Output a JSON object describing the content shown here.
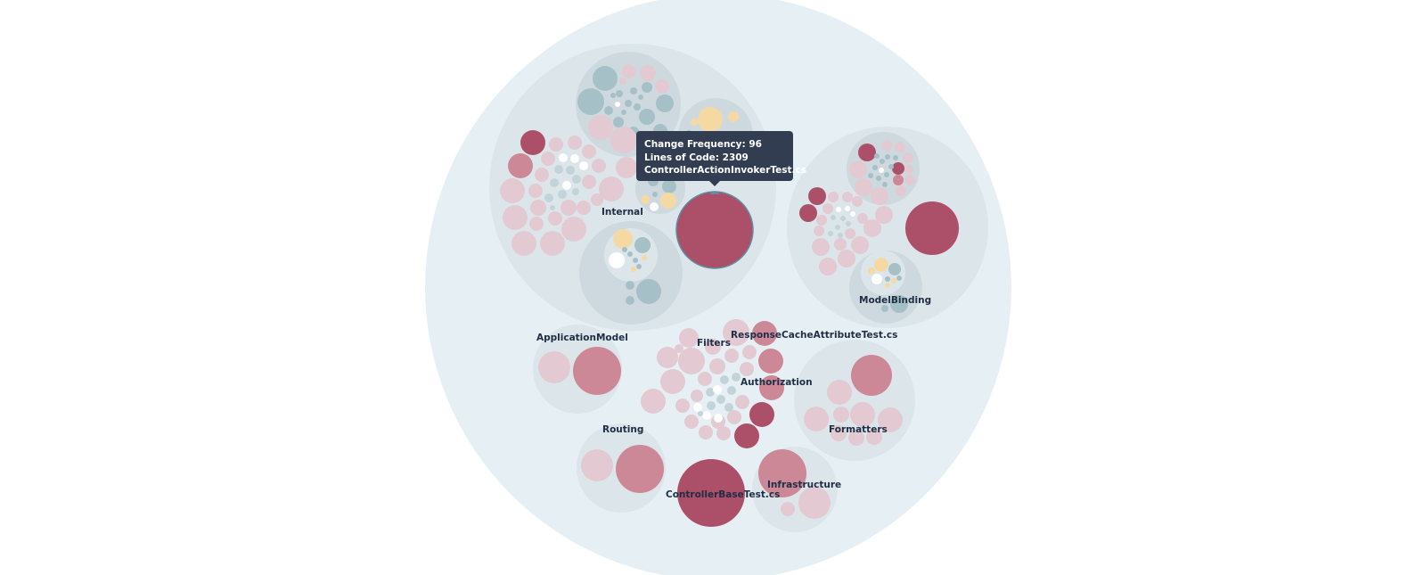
{
  "colors": {
    "root": "#e6f0f4",
    "group": "#dce6ea",
    "group_dark": "#cdd9de",
    "test_light": "#e3c9d1",
    "test_mid": "#cc8897",
    "test_dark": "#ab5068",
    "src": "#a6c0c8",
    "src_light": "#c2d4d9",
    "yellow": "#f5d9a3",
    "white": "#ffffff",
    "selected_stroke": "#5f8fa6"
  },
  "tooltip": {
    "change_frequency": "Change Frequency: 96",
    "lines_of_code": "Lines of Code: 2309",
    "file_name": "ControllerActionInvokerTest.cs"
  },
  "labels": {
    "internal": "Internal",
    "model_binding": "ModelBinding",
    "application_model": "ApplicationModel",
    "filters": "Filters",
    "response_cache": "ResponseCacheAttributeTest.cs",
    "authorization": "Authorization",
    "formatters": "Formatters",
    "routing": "Routing",
    "infrastructure": "Infrastructure",
    "controller_base": "ControllerBaseTest.cs"
  }
}
